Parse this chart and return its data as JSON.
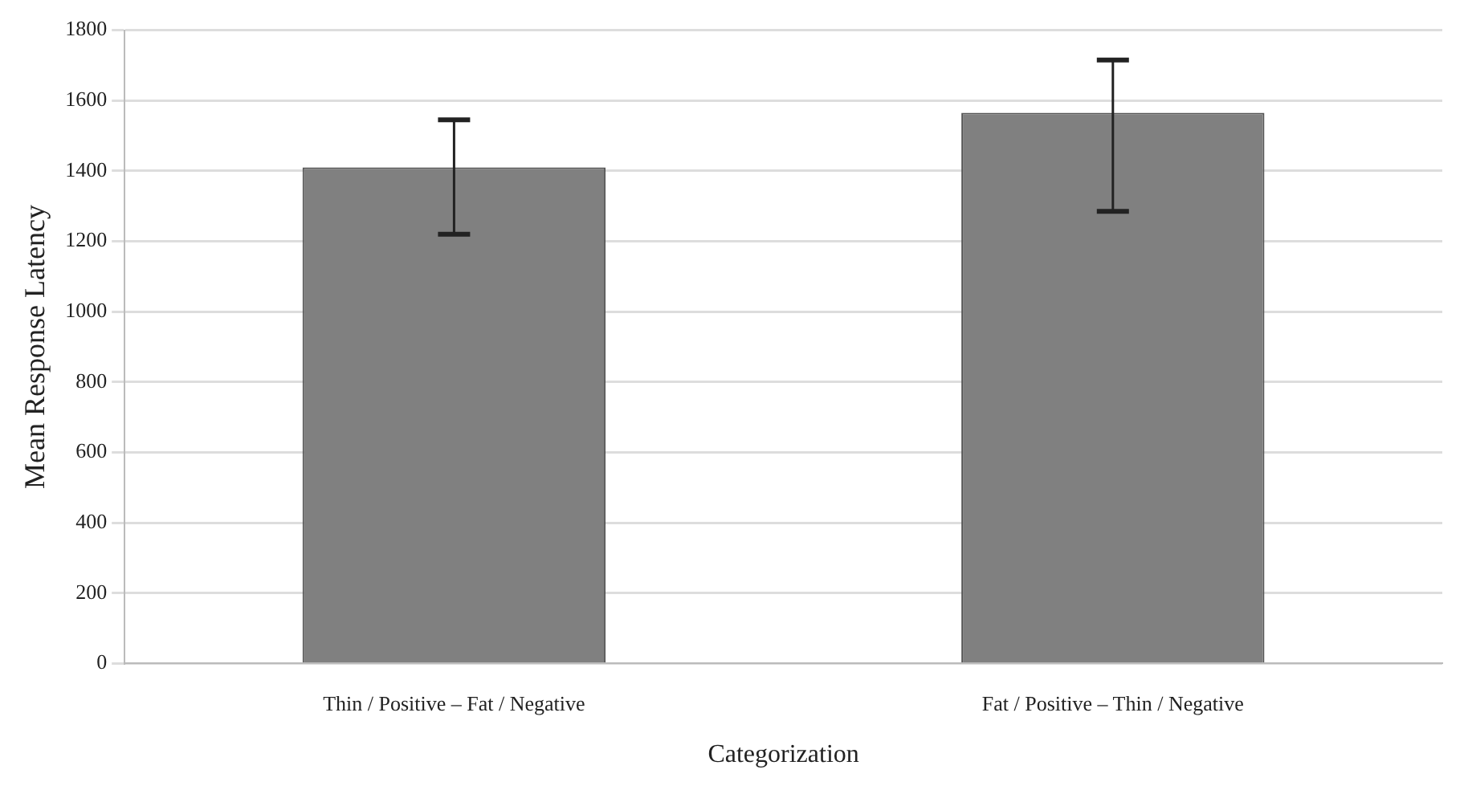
{
  "chart_data": {
    "type": "bar",
    "xlabel": "Categorization",
    "ylabel": "Mean Response Latency",
    "categories": [
      "Thin / Positive – Fat / Negative",
      "Fat / Positive – Thin / Negative"
    ],
    "values": [
      1410,
      1565
    ],
    "color": "#808080",
    "errors": [
      [
        1220,
        1545
      ],
      [
        1285,
        1715
      ]
    ],
    "ylim": [
      0,
      1800
    ],
    "yticks": [
      0,
      200,
      400,
      600,
      800,
      1000,
      1200,
      1400,
      1600,
      1800
    ],
    "grid": "y",
    "legend": false
  }
}
